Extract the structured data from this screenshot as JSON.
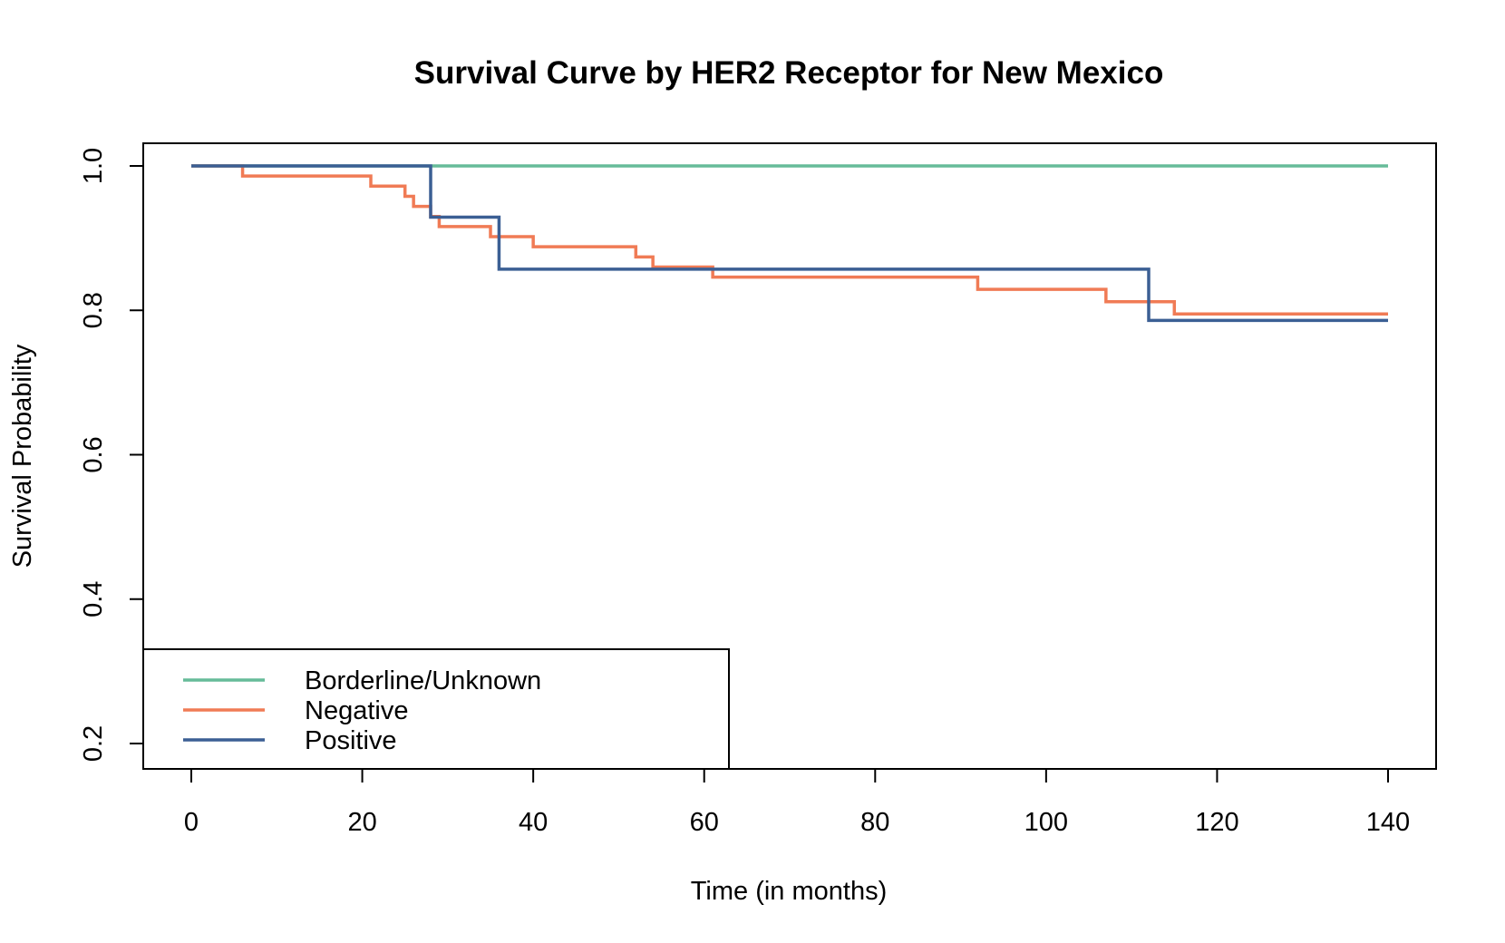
{
  "chart_data": {
    "type": "line",
    "step": true,
    "title": "Survival Curve by HER2 Receptor for New Mexico",
    "xlabel": "Time (in months)",
    "ylabel": "Survival Probability",
    "xlim": [
      0,
      140
    ],
    "ylim": [
      0.2,
      1.0
    ],
    "xticks": [
      0,
      20,
      40,
      60,
      80,
      100,
      120,
      140
    ],
    "yticks": [
      0.2,
      0.4,
      0.6,
      0.8,
      1.0
    ],
    "xtick_labels": [
      "0",
      "20",
      "40",
      "60",
      "80",
      "100",
      "120",
      "140"
    ],
    "ytick_labels": [
      "0.2",
      "0.4",
      "0.6",
      "0.8",
      "1.0"
    ],
    "grid": false,
    "legend_position": "bottom-left",
    "series": [
      {
        "name": "Borderline/Unknown",
        "color": "#66bb99",
        "x": [
          0,
          140
        ],
        "y": [
          1.0,
          1.0
        ]
      },
      {
        "name": "Negative",
        "color": "#f07b55",
        "x": [
          0,
          6,
          21,
          25,
          26,
          28,
          29,
          35,
          40,
          52,
          54,
          61,
          92,
          107,
          115,
          140
        ],
        "y": [
          1.0,
          0.986,
          0.972,
          0.958,
          0.944,
          0.93,
          0.916,
          0.902,
          0.888,
          0.874,
          0.86,
          0.846,
          0.829,
          0.812,
          0.795,
          0.795
        ]
      },
      {
        "name": "Positive",
        "color": "#3b5f94",
        "x": [
          0,
          28,
          36,
          112,
          140
        ],
        "y": [
          1.0,
          0.929,
          0.857,
          0.786,
          0.786
        ]
      }
    ]
  }
}
